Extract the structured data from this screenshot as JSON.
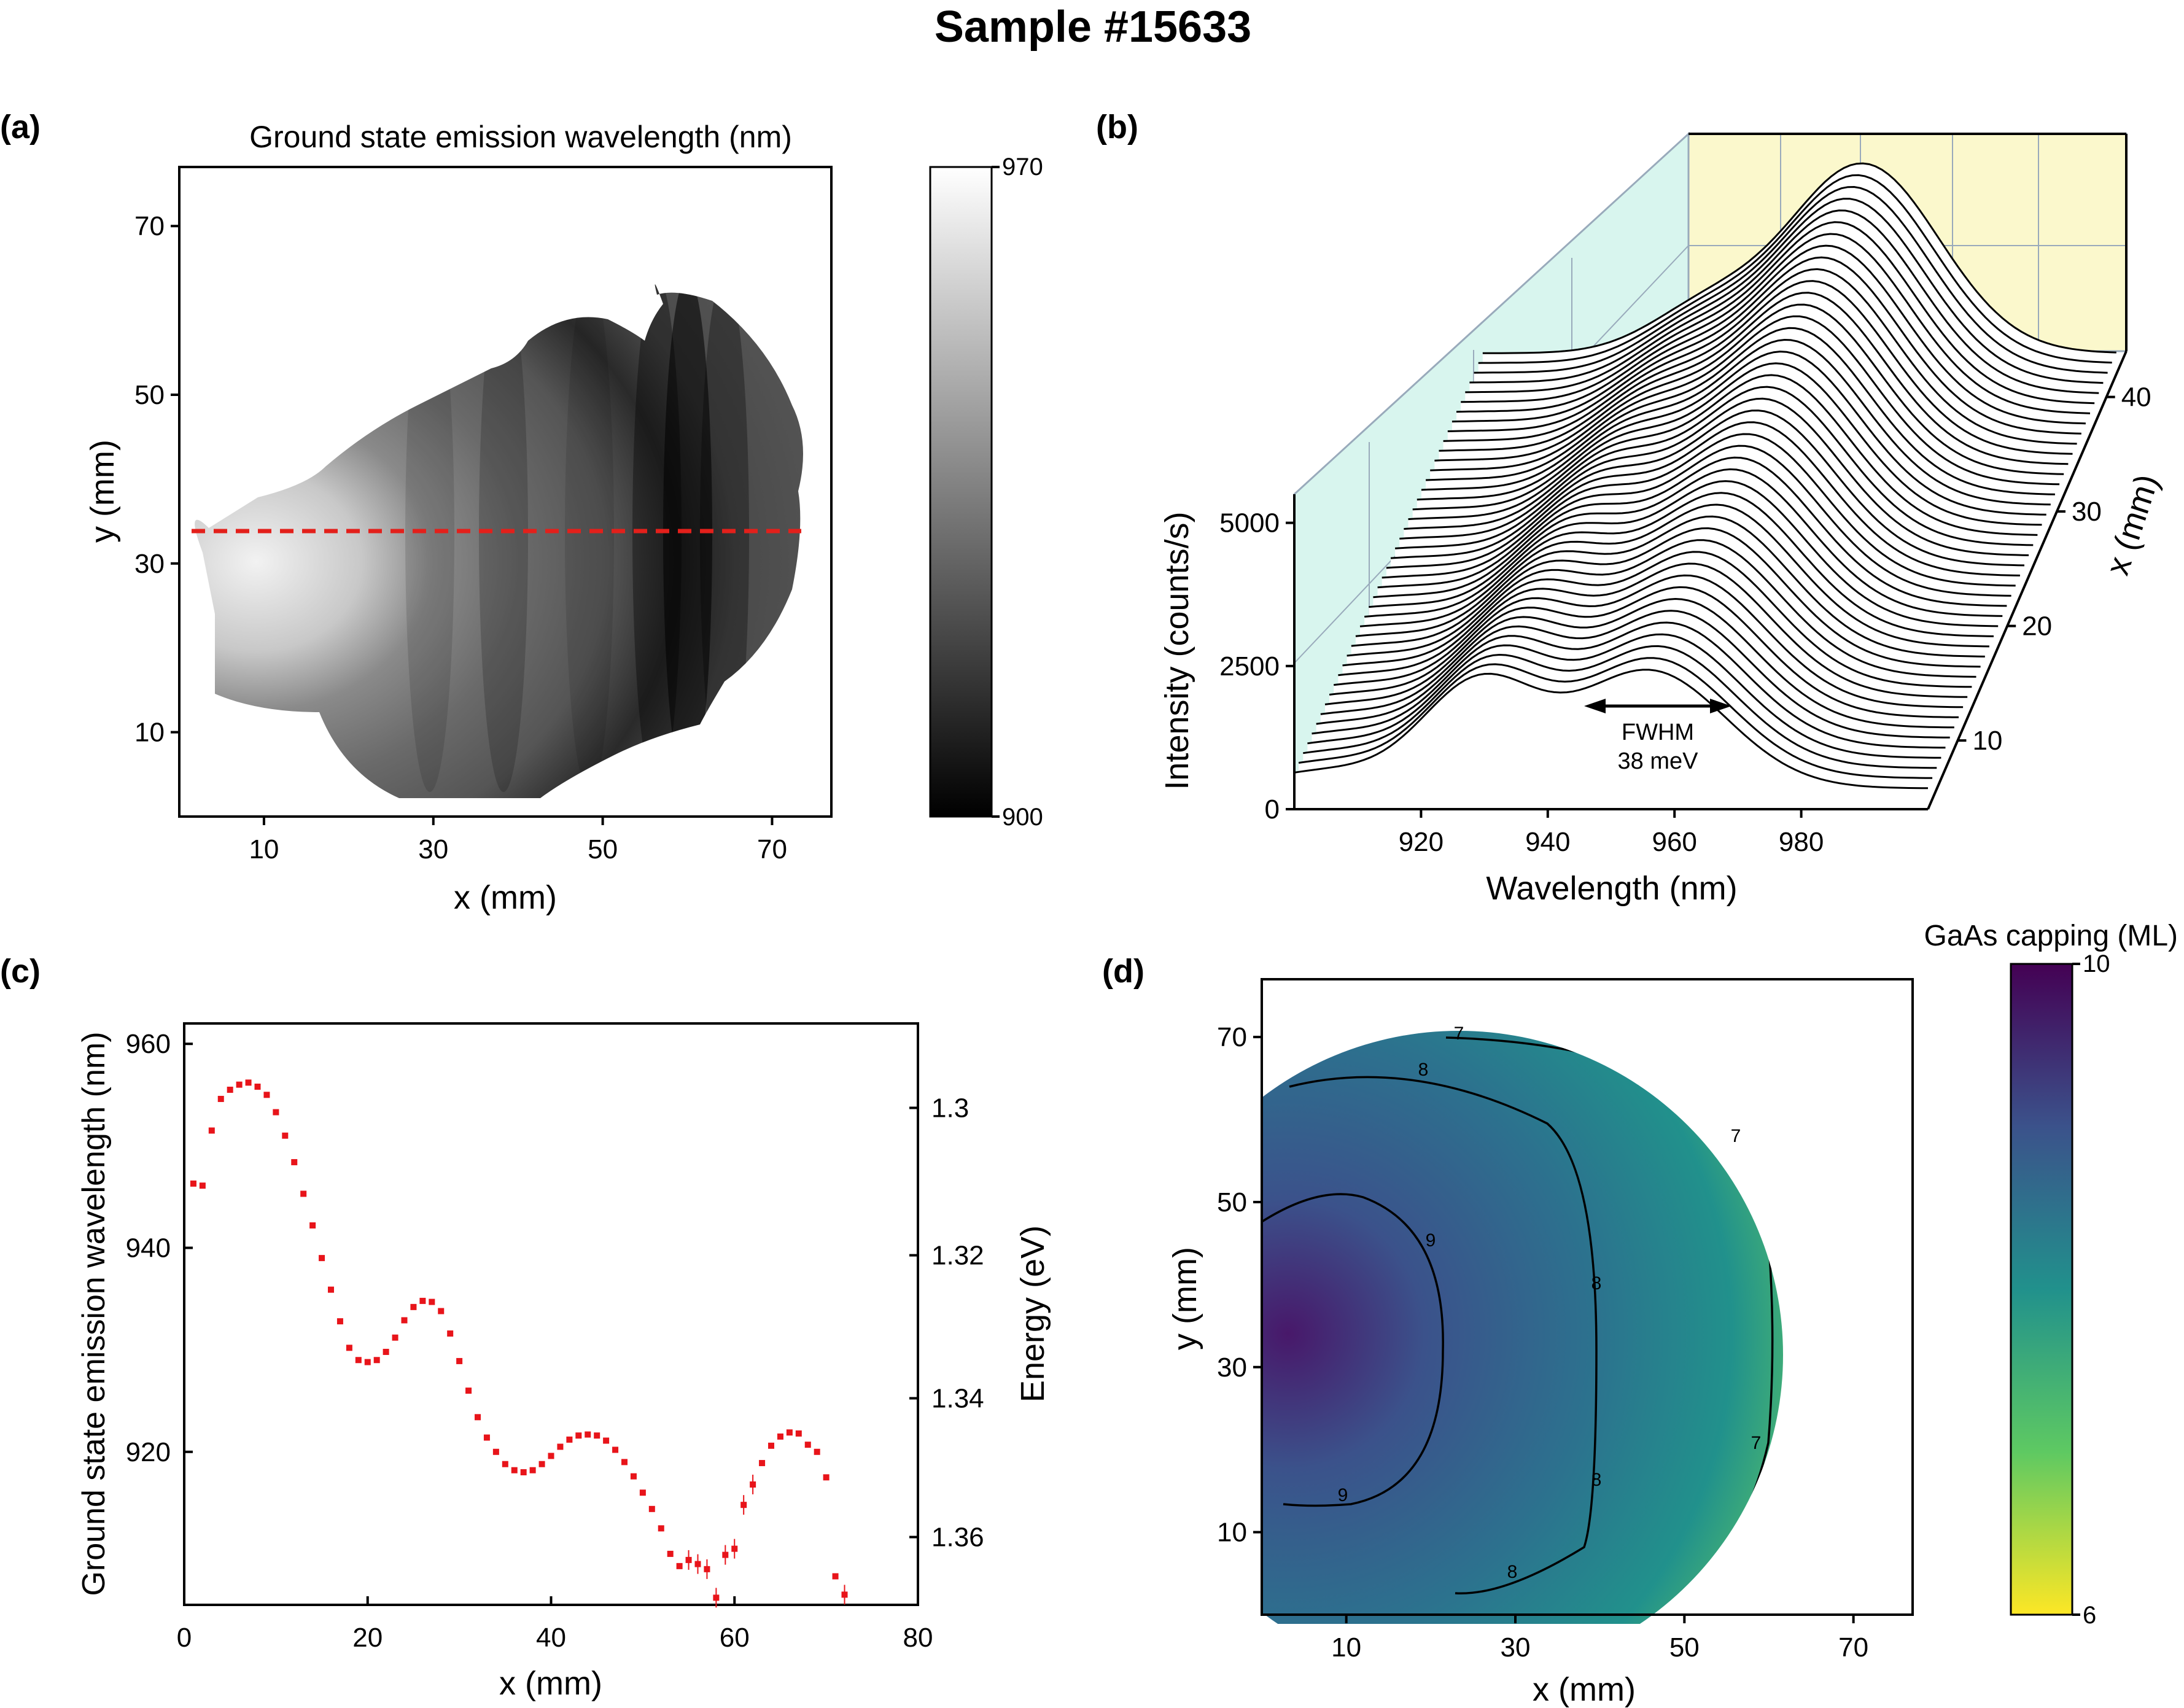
{
  "title": "Sample #15633",
  "colors": {
    "marker": "#e8141a",
    "wall_left": "#d8f5ee",
    "wall_back": "#fbf8cc",
    "dashed": "#e3201b"
  },
  "panel_a": {
    "label": "(a)",
    "title": "Ground state emission wavelength (nm)",
    "xlabel": "x (mm)",
    "ylabel": "y (mm)",
    "xticks": [
      "10",
      "30",
      "50",
      "70"
    ],
    "yticks": [
      "10",
      "30",
      "50",
      "70"
    ],
    "colorbar": {
      "min_label": "900",
      "max_label": "970",
      "min": 900,
      "max": 970
    },
    "dashed_line_y": 34
  },
  "panel_b": {
    "label": "(b)",
    "xlabel": "Wavelength (nm)",
    "ylabel": "Intensity (counts/s)",
    "zlabel": "x (mm)",
    "xticks": [
      "920",
      "940",
      "960",
      "980"
    ],
    "yticks": [
      "0",
      "2500",
      "5000"
    ],
    "zticks": [
      "10",
      "20",
      "30",
      "40"
    ],
    "annotation": {
      "line1": "FWHM",
      "line2": "38 meV"
    }
  },
  "panel_c": {
    "label": "(c)",
    "xlabel": "x (mm)",
    "ylabel": "Ground state emission wavelength (nm)",
    "y2label": "Energy (eV)",
    "xticks": [
      "0",
      "20",
      "40",
      "60",
      "80"
    ],
    "yticks": [
      "920",
      "940",
      "960"
    ],
    "y2ticks": [
      "1.3",
      "1.32",
      "1.34",
      "1.36"
    ]
  },
  "panel_d": {
    "label": "(d)",
    "colorbar_title": "GaAs capping (ML)",
    "xlabel": "x (mm)",
    "ylabel": "y (mm)",
    "xticks": [
      "10",
      "30",
      "50",
      "70"
    ],
    "yticks": [
      "10",
      "30",
      "50",
      "70"
    ],
    "colorbar": {
      "min_label": "6",
      "max_label": "10",
      "min": 6,
      "max": 10
    },
    "contour_labels": [
      "7",
      "8",
      "9",
      "8",
      "9",
      "8",
      "7",
      "7",
      "8"
    ]
  },
  "chart_data": [
    {
      "type": "heatmap",
      "title": "Ground state emission wavelength (nm)",
      "xlabel": "x (mm)",
      "ylabel": "y (mm)",
      "xlim": [
        0,
        77
      ],
      "ylim": [
        0,
        77
      ],
      "zlim": [
        900,
        970
      ],
      "note": "wavelength map, highest near x=5,y=30 (~968 nm), lowest near x=60,y=27 (~905 nm)"
    },
    {
      "type": "line",
      "xlabel": "Wavelength (nm)",
      "ylabel": "Intensity (counts/s)",
      "zlabel": "x (mm)",
      "xlim": [
        900,
        1000
      ],
      "ylim": [
        0,
        5500
      ],
      "zlim": [
        4,
        44
      ],
      "series": [
        {
          "x_mm": 4,
          "peaks": [
            [
              929,
              1800
            ],
            [
              956,
              2050
            ]
          ]
        },
        {
          "x_mm": 24,
          "peaks": [
            [
              935,
              2400
            ],
            [
              958,
              3200
            ]
          ]
        },
        {
          "x_mm": 44,
          "peaks": [
            [
              960,
              3300
            ]
          ]
        }
      ]
    },
    {
      "type": "scatter",
      "xlabel": "x (mm)",
      "ylabel": "Ground state emission wavelength (nm)",
      "y2label": "Energy (eV)",
      "xlim": [
        0,
        80
      ],
      "ylim": [
        905,
        962
      ],
      "x": [
        1,
        2,
        3,
        4,
        5,
        6,
        7,
        8,
        9,
        10,
        11,
        12,
        13,
        14,
        15,
        16,
        17,
        18,
        19,
        20,
        21,
        22,
        23,
        24,
        25,
        26,
        27,
        28,
        29,
        30,
        31,
        32,
        33,
        34,
        35,
        36,
        37,
        38,
        39,
        40,
        41,
        42,
        43,
        44,
        45,
        46,
        47,
        48,
        49,
        50,
        51,
        52,
        53,
        54,
        55,
        56,
        57,
        58,
        59,
        60,
        61,
        62,
        63,
        64,
        65,
        66,
        67,
        68,
        69,
        70,
        71,
        72
      ],
      "y": [
        946.3,
        946.1,
        951.5,
        954.6,
        955.5,
        956.0,
        956.2,
        955.8,
        955.0,
        953.3,
        951.0,
        948.4,
        945.3,
        942.2,
        939.0,
        935.9,
        932.8,
        930.2,
        929.0,
        928.8,
        929.0,
        929.8,
        931.2,
        932.9,
        934.2,
        934.8,
        934.7,
        933.8,
        931.6,
        928.9,
        926.0,
        923.4,
        921.4,
        920.0,
        918.8,
        918.2,
        918.0,
        918.2,
        918.8,
        919.6,
        920.5,
        921.2,
        921.6,
        921.7,
        921.6,
        921.1,
        920.2,
        919.0,
        917.6,
        916.0,
        914.4,
        912.5,
        910.0,
        908.8,
        909.4,
        909.0,
        908.5,
        905.7,
        909.9,
        910.5,
        914.8,
        916.8,
        918.9,
        920.6,
        921.5,
        921.9,
        921.8,
        920.7,
        920.0,
        917.5,
        907.8,
        906.0
      ]
    },
    {
      "type": "heatmap",
      "title": "GaAs capping (ML)",
      "xlabel": "x (mm)",
      "ylabel": "y (mm)",
      "xlim": [
        0,
        77
      ],
      "ylim": [
        0,
        77
      ],
      "zlim": [
        6,
        10
      ],
      "contours": [
        7,
        8,
        9
      ]
    }
  ]
}
